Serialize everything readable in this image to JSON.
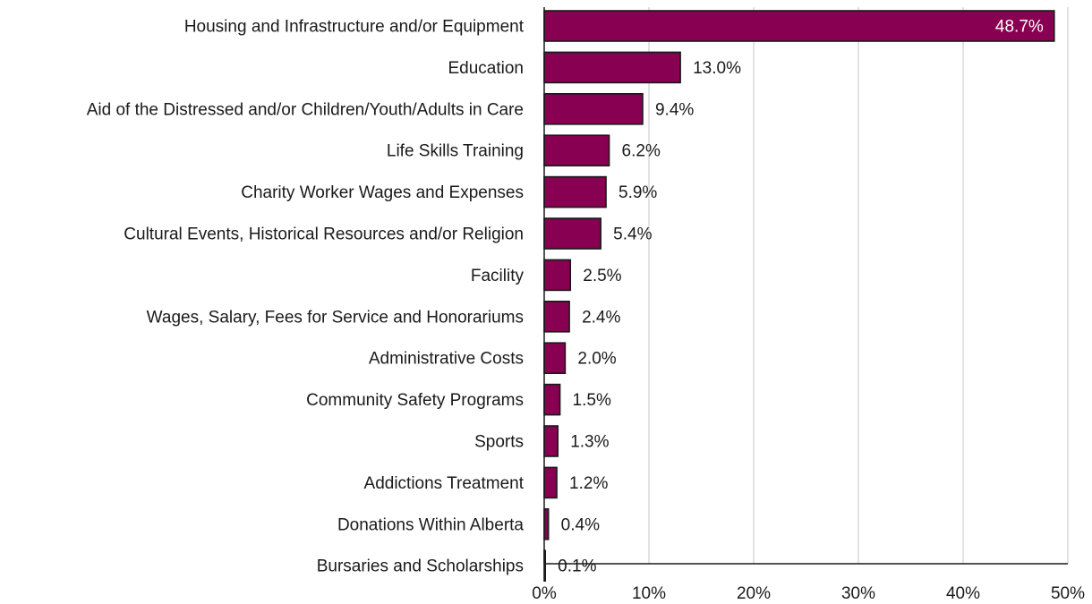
{
  "chart_data": {
    "type": "bar",
    "orientation": "horizontal",
    "title": "",
    "xlabel": "",
    "ylabel": "",
    "categories": [
      "Housing and Infrastructure and/or Equipment",
      "Education",
      "Aid of the Distressed and/or Children/Youth/Adults in Care",
      "Life Skills Training",
      "Charity Worker Wages and Expenses",
      "Cultural Events, Historical Resources and/or Religion",
      "Facility",
      "Wages, Salary, Fees for Service and Honorariums",
      "Administrative Costs",
      "Community Safety Programs",
      "Sports",
      "Addictions Treatment",
      "Donations Within Alberta",
      "Bursaries and Scholarships"
    ],
    "values": [
      48.7,
      13.0,
      9.4,
      6.2,
      5.9,
      5.4,
      2.5,
      2.4,
      2.0,
      1.5,
      1.3,
      1.2,
      0.4,
      0.1
    ],
    "value_labels": [
      "48.7%",
      "13.0%",
      "9.4%",
      "6.2%",
      "5.9%",
      "5.4%",
      "2.5%",
      "2.4%",
      "2.0%",
      "1.5%",
      "1.3%",
      "1.2%",
      "0.4%",
      "0.1%"
    ],
    "xlim": [
      0,
      50
    ],
    "x_ticks": [
      "0%",
      "10%",
      "20%",
      "30%",
      "40%",
      "50%"
    ],
    "grid": "vertical",
    "legend": "none",
    "bar_color": "#870051",
    "bar_edge_color": "#1a1a1a",
    "inside_label_color": "#ffffff",
    "grid_color": "#d9d9d9"
  }
}
